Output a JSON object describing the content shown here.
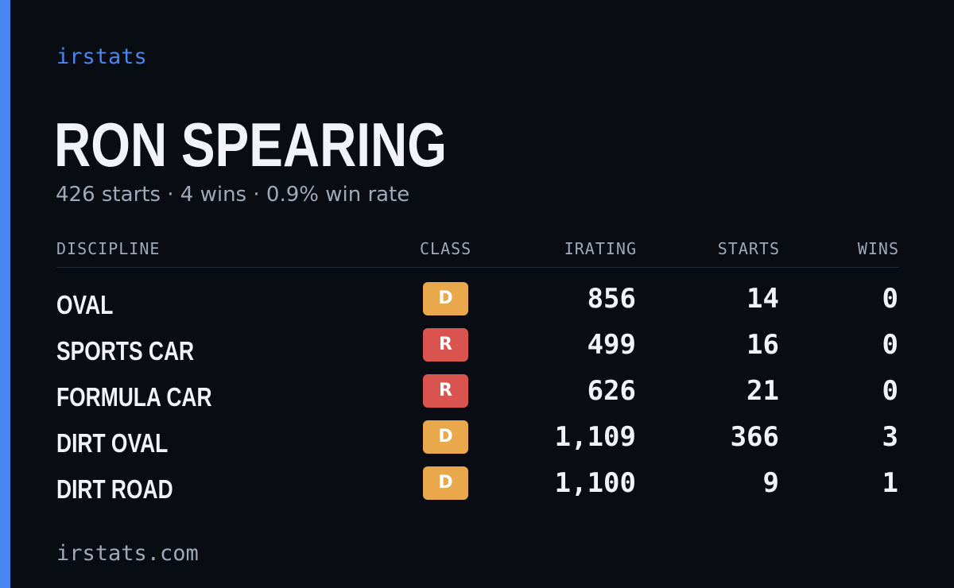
{
  "brand": "irstats",
  "player": {
    "name": "RON SPEARING",
    "summary": "426 starts · 4 wins · 0.9% win rate"
  },
  "table": {
    "headers": {
      "discipline": "DISCIPLINE",
      "class": "CLASS",
      "irating": "IRATING",
      "starts": "STARTS",
      "wins": "WINS"
    },
    "rows": [
      {
        "discipline": "OVAL",
        "class": "D",
        "class_color": "#e9a84b",
        "irating": "856",
        "starts": "14",
        "wins": "0"
      },
      {
        "discipline": "SPORTS CAR",
        "class": "R",
        "class_color": "#d9534f",
        "irating": "499",
        "starts": "16",
        "wins": "0"
      },
      {
        "discipline": "FORMULA CAR",
        "class": "R",
        "class_color": "#d9534f",
        "irating": "626",
        "starts": "21",
        "wins": "0"
      },
      {
        "discipline": "DIRT OVAL",
        "class": "D",
        "class_color": "#e9a84b",
        "irating": "1,109",
        "starts": "366",
        "wins": "3"
      },
      {
        "discipline": "DIRT ROAD",
        "class": "D",
        "class_color": "#e9a84b",
        "irating": "1,100",
        "starts": "9",
        "wins": "1"
      }
    ]
  },
  "footer": "irstats.com",
  "colors": {
    "background": "#0a0c13",
    "accent": "#4a86f0",
    "text_primary": "#f1f3f8",
    "text_muted": "#a0a9b8"
  }
}
